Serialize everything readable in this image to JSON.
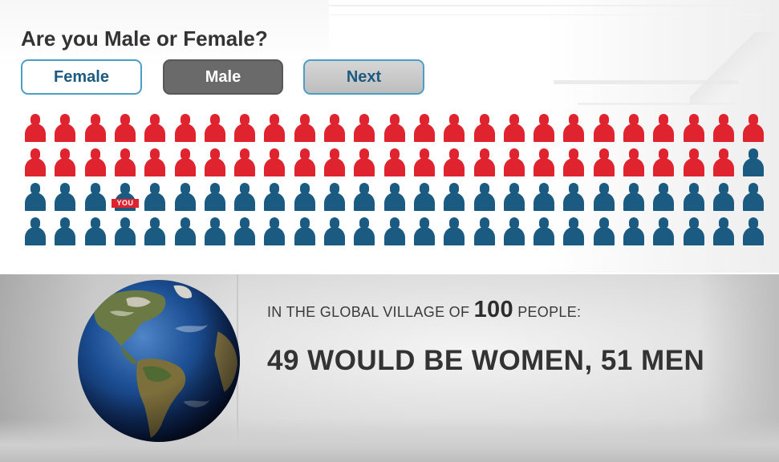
{
  "question": "Are you Male or Female?",
  "buttons": {
    "female": "Female",
    "male": "Male",
    "next": "Next"
  },
  "selected_gender": "Male",
  "colors": {
    "female": "#e0242f",
    "male": "#1b5b82",
    "button_border": "#4d9ec6",
    "selected_button": "#6a6a6a"
  },
  "people_grid": {
    "total": 100,
    "female_count": 49,
    "male_count": 51,
    "columns": 25,
    "you_label": "YOU",
    "you_index": 53,
    "icon": "person-icon"
  },
  "caption": {
    "prefix": "IN THE GLOBAL VILLAGE OF ",
    "number": "100",
    "suffix": " PEOPLE:",
    "headline": "49 WOULD BE WOMEN, 51 MEN"
  },
  "globe_icon": "earth-globe-icon"
}
